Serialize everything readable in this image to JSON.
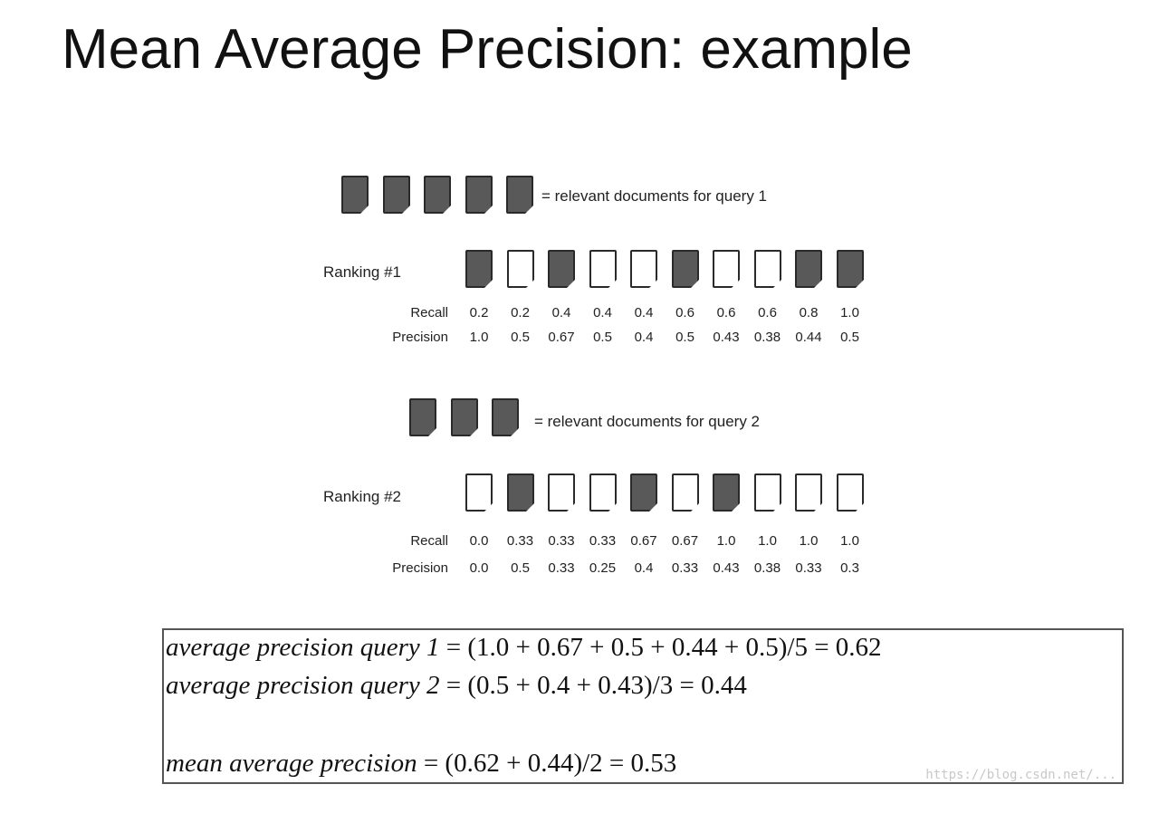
{
  "title": "Mean Average Precision: example",
  "query1": {
    "legend_text": "= relevant documents for query 1",
    "relevant_count": 5,
    "ranking_label": "Ranking #1",
    "ranking": [
      1,
      0,
      1,
      0,
      0,
      1,
      0,
      0,
      1,
      1
    ],
    "recall_label": "Recall",
    "precision_label": "Precision",
    "recall": [
      "0.2",
      "0.2",
      "0.4",
      "0.4",
      "0.4",
      "0.6",
      "0.6",
      "0.6",
      "0.8",
      "1.0"
    ],
    "precision": [
      "1.0",
      "0.5",
      "0.67",
      "0.5",
      "0.4",
      "0.5",
      "0.43",
      "0.38",
      "0.44",
      "0.5"
    ]
  },
  "query2": {
    "legend_text": "= relevant documents for query 2",
    "relevant_count": 3,
    "ranking_label": "Ranking #2",
    "ranking": [
      0,
      1,
      0,
      0,
      1,
      0,
      1,
      0,
      0,
      0
    ],
    "recall_label": "Recall",
    "precision_label": "Precision",
    "recall": [
      "0.0",
      "0.33",
      "0.33",
      "0.33",
      "0.67",
      "0.67",
      "1.0",
      "1.0",
      "1.0",
      "1.0"
    ],
    "precision": [
      "0.0",
      "0.5",
      "0.33",
      "0.25",
      "0.4",
      "0.33",
      "0.43",
      "0.38",
      "0.33",
      "0.3"
    ]
  },
  "formulas": {
    "ap_q1_lhs": "average precision query 1",
    "ap_q1_rhs": " = (1.0 + 0.67 + 0.5 + 0.44 + 0.5)/5 = 0.62",
    "ap_q2_lhs": "average precision query 2",
    "ap_q2_rhs": " = (0.5 + 0.4 + 0.43)/3 = 0.44",
    "map_lhs": "mean average precision",
    "map_rhs": " = (0.62 + 0.44)/2 = 0.53"
  },
  "watermark": "https://blog.csdn.net/..."
}
